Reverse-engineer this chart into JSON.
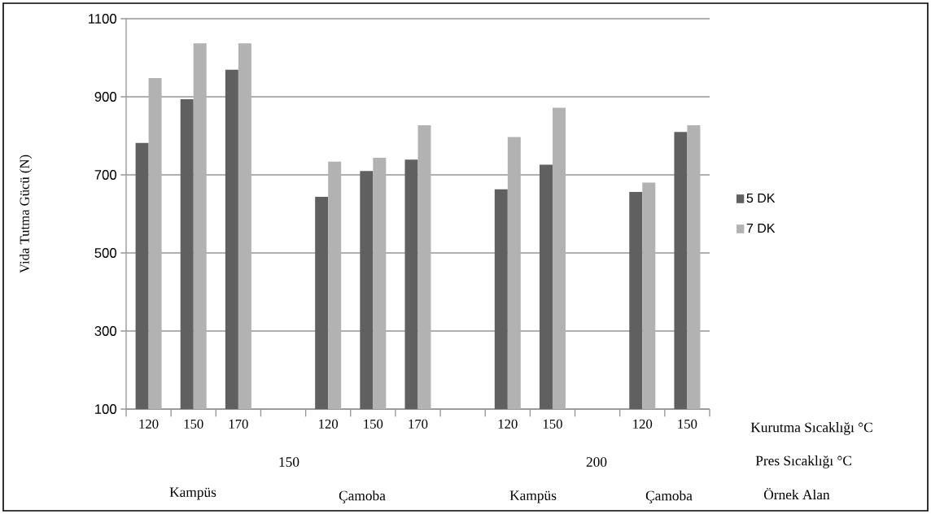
{
  "chart_data": {
    "type": "bar",
    "ylabel": "Vida Tutma Gücü (N)",
    "categories": [
      "120",
      "150",
      "170",
      null,
      "120",
      "150",
      "170",
      null,
      "120",
      "150",
      null,
      "120",
      "150"
    ],
    "series": [
      {
        "name": "5 DK",
        "color": "#606060",
        "values": [
          782,
          894,
          969,
          null,
          644,
          710,
          739,
          null,
          663,
          726,
          null,
          656,
          810
        ]
      },
      {
        "name": "7 DK",
        "color": "#b2b2b2",
        "values": [
          948,
          1037,
          1037,
          null,
          734,
          744,
          827,
          null,
          797,
          872,
          null,
          680,
          827
        ]
      }
    ],
    "ylim": [
      100,
      1100
    ],
    "yticks": [
      100,
      300,
      500,
      700,
      900,
      1100
    ],
    "grid": "y",
    "legend": "right",
    "annotations": [
      "Kurutma Sıcaklığı °C",
      "150",
      "200",
      "Pres Sıcaklığı °C",
      "Kampüs",
      "Çamoba",
      "Kampüs",
      "Çamoba",
      "Örnek Alan"
    ]
  }
}
